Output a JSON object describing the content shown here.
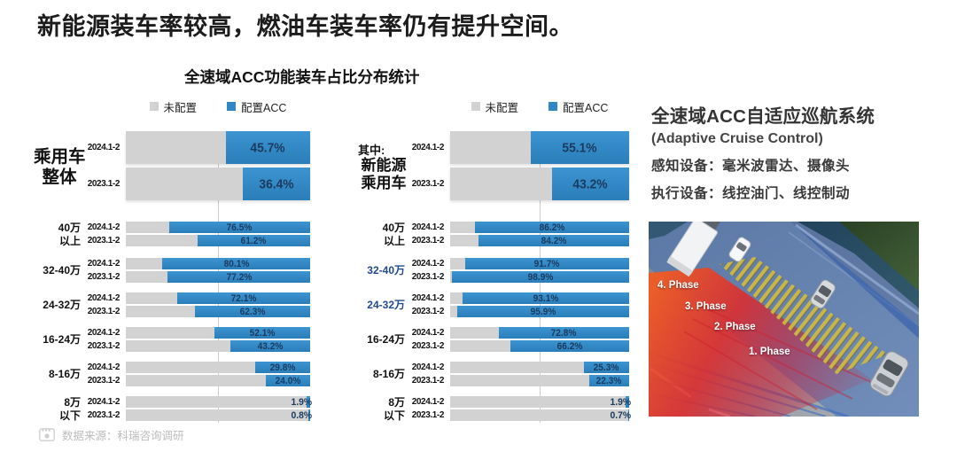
{
  "page_title": "新能源装车率较高，燃油车装车率仍有提升空间。",
  "chart_title": "全速域ACC功能装车占比分布统计",
  "legend": {
    "not_equipped": "未配置",
    "equipped": "配置ACC"
  },
  "colors": {
    "bar_blue": "#2E87C4",
    "bar_gray": "#D2D2D2",
    "value_label": "#1B3A5E",
    "highlight_label": "#1E4B8F"
  },
  "chart_data": [
    {
      "type": "bar",
      "orientation": "horizontal-stacked",
      "unit": "%",
      "xlim": [
        0,
        100
      ],
      "note": "blue segment = 配置ACC share, gray remainder = 未配置",
      "side_label_top": "",
      "side_label_lines": [
        "乘用车",
        "整体"
      ],
      "summary_rows": [
        {
          "period": "2024.1-2",
          "value": 45.7,
          "label": "45.7%"
        },
        {
          "period": "2023.1-2",
          "value": 36.4,
          "label": "36.4%"
        }
      ],
      "groups": [
        {
          "label_lines": [
            "40万",
            "以上"
          ],
          "highlight": false,
          "rows": [
            {
              "period": "2024.1-2",
              "value": 76.5,
              "label": "76.5%"
            },
            {
              "period": "2023.1-2",
              "value": 61.2,
              "label": "61.2%"
            }
          ]
        },
        {
          "label_lines": [
            "32-40万"
          ],
          "highlight": false,
          "rows": [
            {
              "period": "2024.1-2",
              "value": 80.1,
              "label": "80.1%"
            },
            {
              "period": "2023.1-2",
              "value": 77.2,
              "label": "77.2%"
            }
          ]
        },
        {
          "label_lines": [
            "24-32万"
          ],
          "highlight": false,
          "rows": [
            {
              "period": "2024.1-2",
              "value": 72.1,
              "label": "72.1%"
            },
            {
              "period": "2023.1-2",
              "value": 62.3,
              "label": "62.3%"
            }
          ]
        },
        {
          "label_lines": [
            "16-24万"
          ],
          "highlight": false,
          "rows": [
            {
              "period": "2024.1-2",
              "value": 52.1,
              "label": "52.1%"
            },
            {
              "period": "2023.1-2",
              "value": 43.2,
              "label": "43.2%"
            }
          ]
        },
        {
          "label_lines": [
            "8-16万"
          ],
          "highlight": false,
          "rows": [
            {
              "period": "2024.1-2",
              "value": 29.8,
              "label": "29.8%"
            },
            {
              "period": "2023.1-2",
              "value": 24.0,
              "label": "24.0%"
            }
          ]
        },
        {
          "label_lines": [
            "8万",
            "以下"
          ],
          "highlight": false,
          "rows": [
            {
              "period": "2024.1-2",
              "value": 1.9,
              "label": "1.9%"
            },
            {
              "period": "2023.1-2",
              "value": 0.8,
              "label": "0.8%"
            }
          ]
        }
      ]
    },
    {
      "type": "bar",
      "orientation": "horizontal-stacked",
      "unit": "%",
      "xlim": [
        0,
        100
      ],
      "note": "blue segment = 配置ACC share, gray remainder = 未配置",
      "side_label_top": "其中:",
      "side_label_lines": [
        "新能源",
        "乘用车"
      ],
      "summary_rows": [
        {
          "period": "2024.1-2",
          "value": 55.1,
          "label": "55.1%"
        },
        {
          "period": "2023.1-2",
          "value": 43.2,
          "label": "43.2%"
        }
      ],
      "groups": [
        {
          "label_lines": [
            "40万",
            "以上"
          ],
          "highlight": false,
          "rows": [
            {
              "period": "2024.1-2",
              "value": 86.2,
              "label": "86.2%"
            },
            {
              "period": "2023.1-2",
              "value": 84.2,
              "label": "84.2%"
            }
          ]
        },
        {
          "label_lines": [
            "32-40万"
          ],
          "highlight": true,
          "rows": [
            {
              "period": "2024.1-2",
              "value": 91.7,
              "label": "91.7%"
            },
            {
              "period": "2023.1-2",
              "value": 98.9,
              "label": "98.9%"
            }
          ]
        },
        {
          "label_lines": [
            "24-32万"
          ],
          "highlight": true,
          "rows": [
            {
              "period": "2024.1-2",
              "value": 93.1,
              "label": "93.1%"
            },
            {
              "period": "2023.1-2",
              "value": 95.9,
              "label": "95.9%"
            }
          ]
        },
        {
          "label_lines": [
            "16-24万"
          ],
          "highlight": false,
          "rows": [
            {
              "period": "2024.1-2",
              "value": 72.8,
              "label": "72.8%"
            },
            {
              "period": "2023.1-2",
              "value": 66.2,
              "label": "66.2%"
            }
          ]
        },
        {
          "label_lines": [
            "8-16万"
          ],
          "highlight": false,
          "rows": [
            {
              "period": "2024.1-2",
              "value": 25.3,
              "label": "25.3%"
            },
            {
              "period": "2023.1-2",
              "value": 22.3,
              "label": "22.3%"
            }
          ]
        },
        {
          "label_lines": [
            "8万",
            "以下"
          ],
          "highlight": false,
          "rows": [
            {
              "period": "2024.1-2",
              "value": 1.9,
              "label": "1.9%"
            },
            {
              "period": "2023.1-2",
              "value": 0.7,
              "label": "0.7%"
            }
          ]
        }
      ]
    }
  ],
  "info_panel": {
    "title": "全速域ACC自适应巡航系统",
    "subtitle": "(Adaptive Cruise Control)",
    "line1": "感知设备：毫米波雷达、摄像头",
    "line2": "执行设备：线控油门、线控制动",
    "phases": [
      "4. Phase",
      "3. Phase",
      "2. Phase",
      "1. Phase"
    ]
  },
  "footer": {
    "source": "数据来源：科瑞咨询调研"
  }
}
